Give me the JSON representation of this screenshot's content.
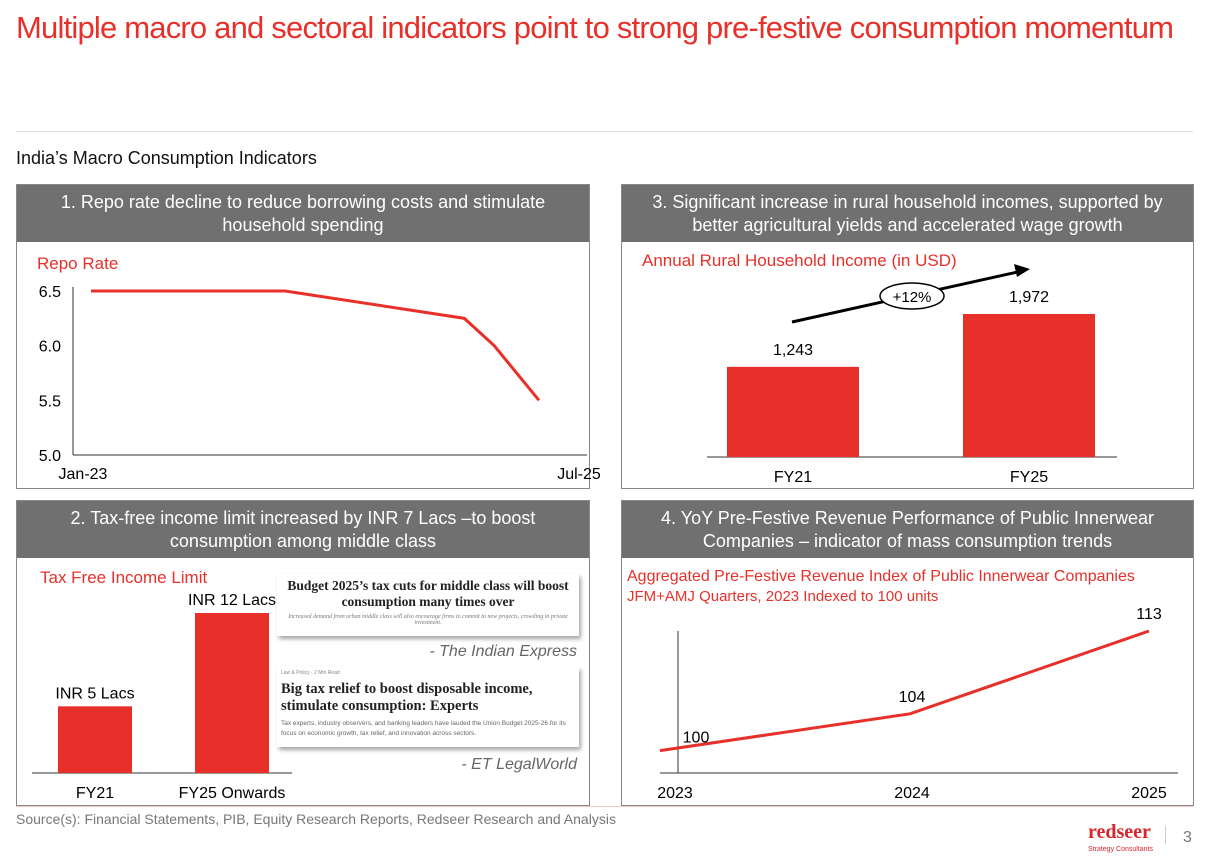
{
  "title": "Multiple macro and sectoral indicators point to strong pre-festive consumption momentum",
  "subtitle": "India’s Macro Consumption Indicators",
  "panels": {
    "p1": {
      "header": "1. Repo rate decline to reduce borrowing costs and stimulate household spending",
      "label": "Repo Rate"
    },
    "p2": {
      "header": "2. Tax-free income limit increased by INR 7 Lacs –to boost consumption among middle class",
      "label": "Tax Free Income Limit"
    },
    "p3": {
      "header": "3. Significant increase in rural household incomes, supported by better agricultural yields and accelerated wage growth",
      "label": "Annual Rural Household Income (in USD)",
      "growth": "+12%"
    },
    "p4": {
      "header": "4. YoY Pre-Festive Revenue Performance of Public Innerwear Companies – indicator of mass consumption trends",
      "label": "Aggregated Pre-Festive Revenue Index of Public Innerwear Companies",
      "sublabel": "JFM+AMJ Quarters, 2023 Indexed to 100 units"
    }
  },
  "clippings": [
    {
      "headline": "Budget 2025’s tax cuts for middle class will boost consumption many times over",
      "deck": "Increased demand from urban middle class will also encourage firms to commit to new projects, crowding in private investment.",
      "source": "- The Indian Express"
    },
    {
      "kicker": "Law & Policy · 2 Min Read",
      "headline": "Big tax relief to boost disposable income, stimulate consumption: Experts",
      "deck": "Tax experts, industry observers, and banking leaders have lauded the Union Budget 2025-26 for its focus on economic growth, tax relief, and innovation across sectors.",
      "source": "- ET LegalWorld"
    }
  ],
  "footer": {
    "source": "Source(s): Financial Statements, PIB, Equity Research Reports, Redseer Research and Analysis",
    "logo": "redseer",
    "logo_sub": "Strategy Consultants",
    "page": "3"
  },
  "colors": {
    "accent": "#e8302a",
    "header": "#707070"
  },
  "chart_data": [
    {
      "type": "line",
      "title": "Repo Rate",
      "x": [
        "Jan-23",
        "Feb-24",
        "Feb-25",
        "Apr-25",
        "Jul-25"
      ],
      "x_tick_labels": [
        "Jan-23",
        "Jul-25"
      ],
      "values": [
        6.5,
        6.5,
        6.25,
        6.0,
        5.5
      ],
      "yticks": [
        "6.5",
        "6.0",
        "5.5",
        "5.0"
      ],
      "ylim": [
        5.0,
        6.5
      ]
    },
    {
      "type": "bar",
      "title": "Tax Free Income Limit",
      "categories": [
        "FY21",
        "FY25 Onwards"
      ],
      "values": [
        5,
        12
      ],
      "data_labels": [
        "INR 5 Lacs",
        "INR 12 Lacs"
      ]
    },
    {
      "type": "bar",
      "title": "Annual Rural Household Income (in USD)",
      "categories": [
        "FY21",
        "FY25"
      ],
      "values": [
        1243,
        1972
      ],
      "data_labels": [
        "1,243",
        "1,972"
      ],
      "annotation": "+12%"
    },
    {
      "type": "line",
      "title": "Aggregated Pre-Festive Revenue Index of Public Innerwear Companies",
      "categories": [
        "2023",
        "2024",
        "2025"
      ],
      "values": [
        100,
        104,
        113
      ],
      "data_labels": [
        "100",
        "104",
        "113"
      ]
    }
  ]
}
